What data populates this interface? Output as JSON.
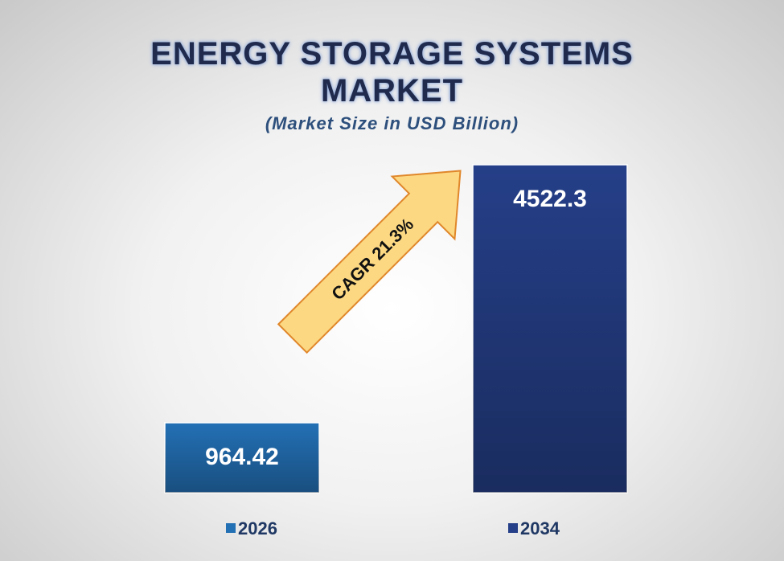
{
  "chart_data": {
    "type": "bar",
    "title": "ENERGY STORAGE SYSTEMS MARKET",
    "subtitle": "(Market Size in USD Billion)",
    "categories": [
      "2026",
      "2034"
    ],
    "values": [
      964.42,
      4522.3
    ],
    "colors": [
      "#2370b5",
      "#253f88"
    ],
    "annotation": "CAGR 21.3%",
    "legend": "bottom"
  }
}
